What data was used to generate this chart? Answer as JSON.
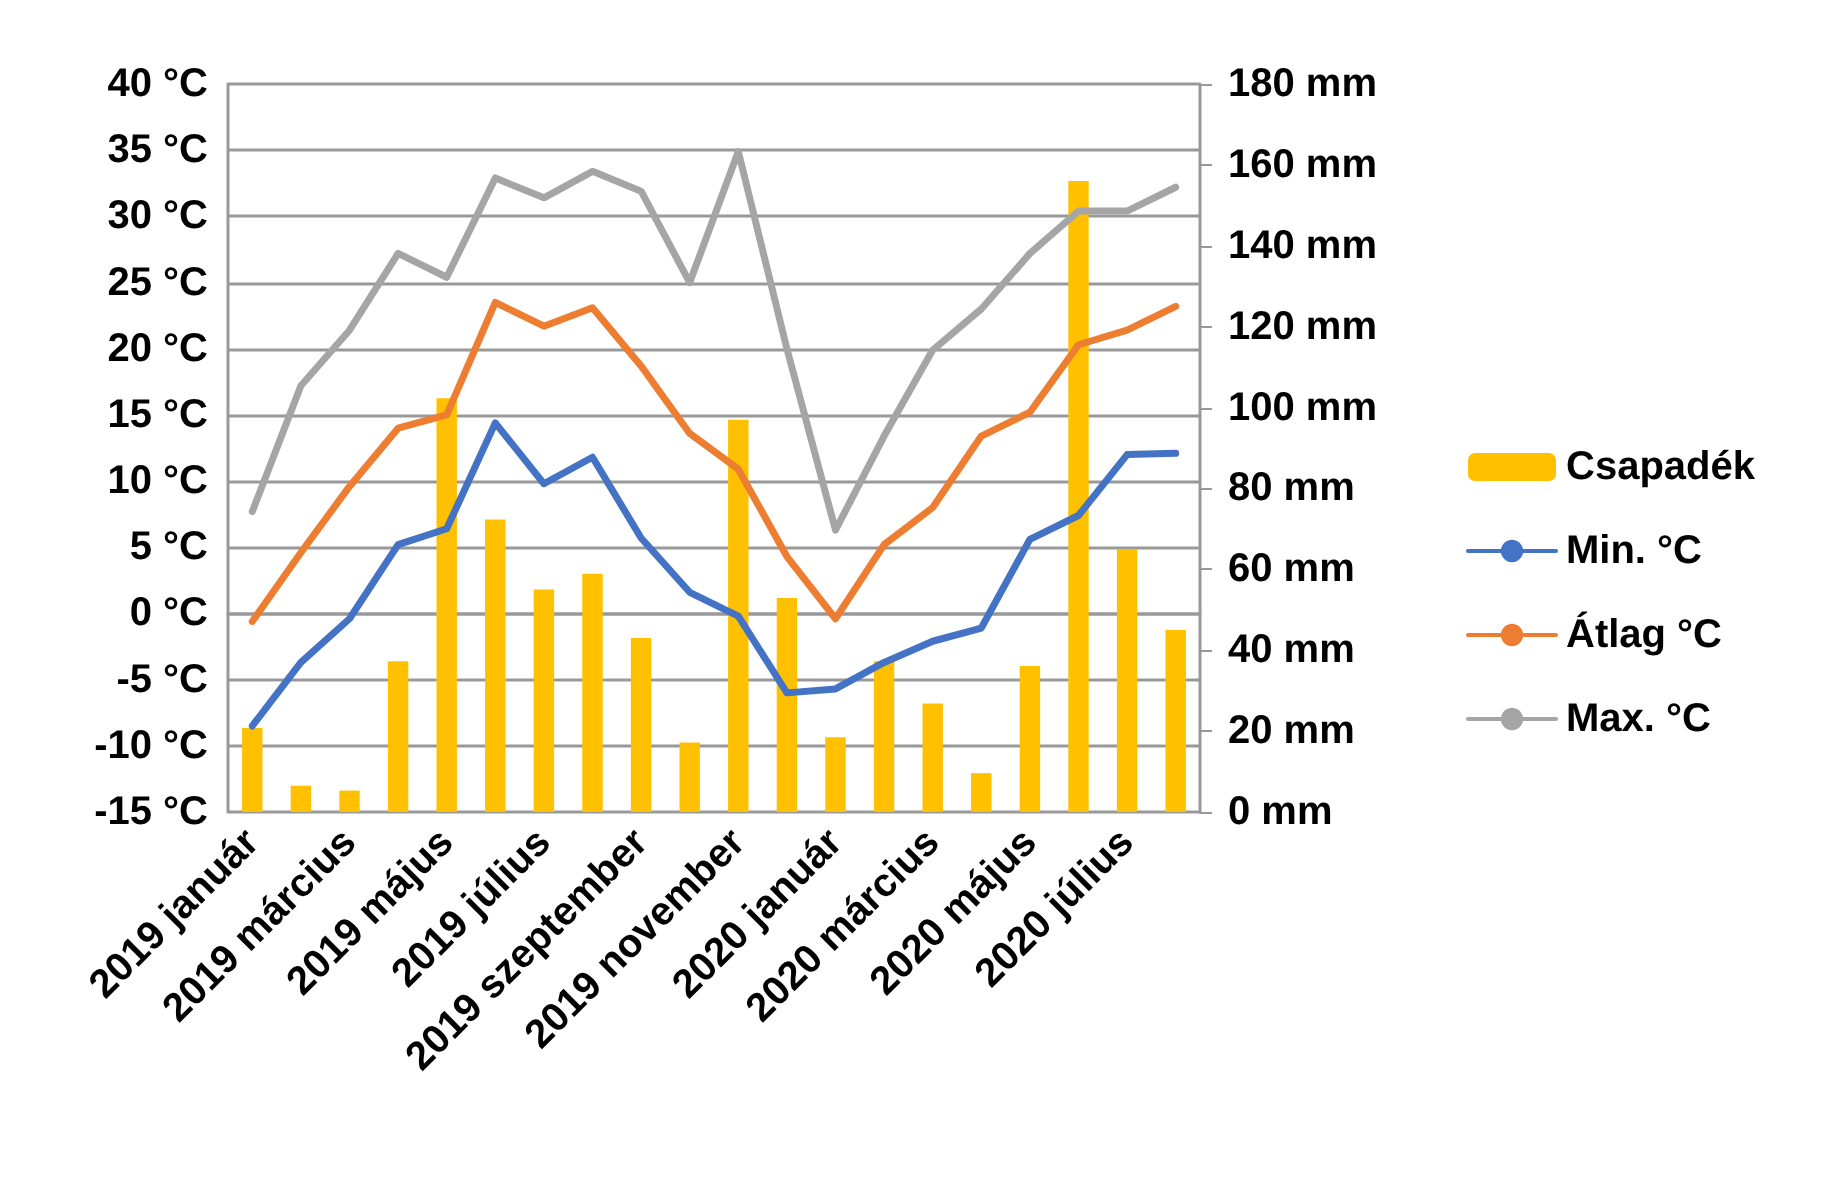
{
  "chart_data": {
    "type": "line",
    "categories": [
      "2019 január",
      null,
      "2019 március",
      null,
      "2019 május",
      null,
      "2019 július",
      null,
      "2019 szeptember",
      null,
      "2019 november",
      null,
      "2020 január",
      null,
      "2020 március",
      null,
      "2020 május",
      null,
      "2020 július",
      null
    ],
    "series": [
      {
        "name": "Csapadék",
        "type": "bar",
        "axis": "y2",
        "color": "#ffc000",
        "values": [
          20.8,
          6.5,
          5.3,
          37.3,
          102.3,
          72.3,
          55,
          58.9,
          43,
          17.2,
          97,
          52.9,
          18.5,
          37.3,
          26.8,
          9.6,
          36.1,
          156,
          65,
          45
        ]
      },
      {
        "name": "Min. °C",
        "color": "#4472c4",
        "values": [
          -8.5,
          -3.7,
          -0.4,
          5.2,
          6.4,
          14.4,
          9.8,
          11.8,
          5.7,
          1.6,
          -0.2,
          -6.0,
          -5.7,
          -3.7,
          -2.1,
          -1.1,
          5.6,
          7.4,
          12.0,
          12.1
        ]
      },
      {
        "name": "Átlag °C",
        "color": "#ed7d31",
        "values": [
          -0.6,
          4.6,
          9.6,
          14.0,
          15.0,
          23.5,
          21.7,
          23.1,
          18.7,
          13.6,
          10.9,
          4.3,
          -0.4,
          5.2,
          8.0,
          13.4,
          15.2,
          20.3,
          21.4,
          23.2
        ]
      },
      {
        "name": "Max. °C",
        "color": "#a5a5a5",
        "values": [
          7.7,
          17.2,
          21.4,
          27.2,
          25.4,
          32.9,
          31.4,
          33.4,
          31.9,
          25.0,
          34.9,
          20.0,
          6.3,
          13.4,
          19.9,
          23.0,
          27.2,
          30.4,
          30.4,
          32.2
        ]
      }
    ],
    "ylim": [
      -15,
      40
    ],
    "yticks": [
      {
        "value": -15,
        "label": "-15 °C"
      },
      {
        "value": -10,
        "label": "-10 °C"
      },
      {
        "value": -5,
        "label": "-5 °C"
      },
      {
        "value": 0,
        "label": "0 °C"
      },
      {
        "value": 5,
        "label": "5 °C"
      },
      {
        "value": 10,
        "label": "10 °C"
      },
      {
        "value": 15,
        "label": "15 °C"
      },
      {
        "value": 20,
        "label": "20 °C"
      },
      {
        "value": 25,
        "label": "25 °C"
      },
      {
        "value": 30,
        "label": "30 °C"
      },
      {
        "value": 35,
        "label": "35 °C"
      },
      {
        "value": 40,
        "label": "40 °C"
      }
    ],
    "y2lim": [
      0,
      180
    ],
    "y2ticks": [
      {
        "value": 0,
        "label": "0 mm"
      },
      {
        "value": 20,
        "label": "20 mm"
      },
      {
        "value": 40,
        "label": "40 mm"
      },
      {
        "value": 60,
        "label": "60 mm"
      },
      {
        "value": 80,
        "label": "80 mm"
      },
      {
        "value": 100,
        "label": "100 mm"
      },
      {
        "value": 120,
        "label": "120 mm"
      },
      {
        "value": 140,
        "label": "140 mm"
      },
      {
        "value": 160,
        "label": "160 mm"
      },
      {
        "value": 180,
        "label": "180 mm"
      }
    ],
    "grid": "y",
    "legend": "right",
    "marker": "none",
    "line_style": "solid"
  }
}
